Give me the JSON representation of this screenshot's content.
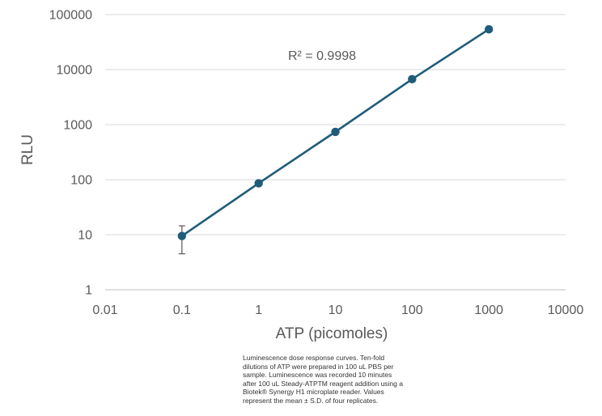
{
  "chart_data": {
    "type": "line",
    "x_scale": "log",
    "y_scale": "log",
    "xlabel": "ATP (picomoles)",
    "ylabel": "RLU",
    "xlim": [
      0.01,
      10000
    ],
    "ylim": [
      1,
      100000
    ],
    "x_ticks": [
      "0.01",
      "0.1",
      "1",
      "10",
      "100",
      "1000",
      "10000"
    ],
    "y_ticks": [
      "1",
      "10",
      "100",
      "1000",
      "10000",
      "100000"
    ],
    "grid": "horizontal",
    "legend": "none",
    "annotation": "R² = 0.9998",
    "series": [
      {
        "color": "#1f5c7a",
        "points": [
          {
            "x": 0.1,
            "y": 9.5,
            "err_low": 4.5,
            "err_high": 14.5
          },
          {
            "x": 1,
            "y": 86
          },
          {
            "x": 10,
            "y": 740
          },
          {
            "x": 100,
            "y": 6700
          },
          {
            "x": 1000,
            "y": 54000
          }
        ]
      }
    ]
  },
  "caption": "Luminescence dose response curves. Ten-fold\ndilutions of ATP were prepared in 100 uL PBS per\nsample. Luminescence was recorded 10 minutes\nafter 100 uL Steady-ATPTM reagent addition using a\nBiotek® Synergy H1 microplate reader. Values\nrepresent the mean ± S.D. of four replicates."
}
